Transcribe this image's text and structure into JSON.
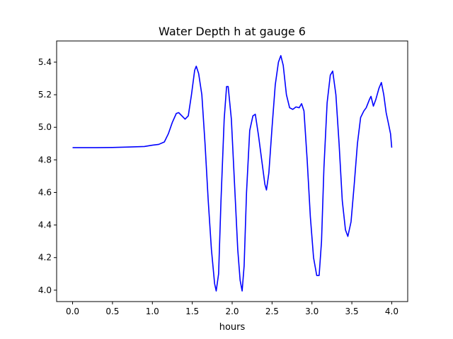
{
  "chart_data": {
    "type": "line",
    "title": "Water Depth h at gauge 6",
    "xlabel": "hours",
    "ylabel": "",
    "xlim": [
      -0.2,
      4.2
    ],
    "ylim": [
      3.93,
      5.53
    ],
    "xticks": [
      0.0,
      0.5,
      1.0,
      1.5,
      2.0,
      2.5,
      3.0,
      3.5,
      4.0
    ],
    "xtick_labels": [
      "0.0",
      "0.5",
      "1.0",
      "1.5",
      "2.0",
      "2.5",
      "3.0",
      "3.5",
      "4.0"
    ],
    "yticks": [
      4.0,
      4.2,
      4.4,
      4.6,
      4.8,
      5.0,
      5.2,
      5.4
    ],
    "ytick_labels": [
      "4.0",
      "4.2",
      "4.4",
      "4.6",
      "4.8",
      "5.0",
      "5.2",
      "5.4"
    ],
    "grid": false,
    "series": [
      {
        "color": "#0000ff",
        "points": [
          [
            0.0,
            4.875
          ],
          [
            0.3,
            4.875
          ],
          [
            0.5,
            4.876
          ],
          [
            0.7,
            4.879
          ],
          [
            0.9,
            4.882
          ],
          [
            1.0,
            4.89
          ],
          [
            1.08,
            4.895
          ],
          [
            1.15,
            4.91
          ],
          [
            1.2,
            4.96
          ],
          [
            1.25,
            5.03
          ],
          [
            1.3,
            5.085
          ],
          [
            1.33,
            5.09
          ],
          [
            1.37,
            5.07
          ],
          [
            1.41,
            5.05
          ],
          [
            1.45,
            5.07
          ],
          [
            1.49,
            5.2
          ],
          [
            1.53,
            5.35
          ],
          [
            1.55,
            5.375
          ],
          [
            1.58,
            5.33
          ],
          [
            1.62,
            5.2
          ],
          [
            1.66,
            4.9
          ],
          [
            1.7,
            4.55
          ],
          [
            1.74,
            4.25
          ],
          [
            1.78,
            4.04
          ],
          [
            1.8,
            3.995
          ],
          [
            1.83,
            4.1
          ],
          [
            1.86,
            4.55
          ],
          [
            1.9,
            5.05
          ],
          [
            1.93,
            5.25
          ],
          [
            1.95,
            5.25
          ],
          [
            1.99,
            5.05
          ],
          [
            2.03,
            4.65
          ],
          [
            2.07,
            4.25
          ],
          [
            2.1,
            4.06
          ],
          [
            2.125,
            3.995
          ],
          [
            2.15,
            4.15
          ],
          [
            2.18,
            4.6
          ],
          [
            2.22,
            4.98
          ],
          [
            2.26,
            5.07
          ],
          [
            2.29,
            5.08
          ],
          [
            2.33,
            4.95
          ],
          [
            2.37,
            4.8
          ],
          [
            2.41,
            4.65
          ],
          [
            2.43,
            4.615
          ],
          [
            2.46,
            4.72
          ],
          [
            2.5,
            5.0
          ],
          [
            2.54,
            5.26
          ],
          [
            2.58,
            5.4
          ],
          [
            2.61,
            5.44
          ],
          [
            2.64,
            5.38
          ],
          [
            2.68,
            5.2
          ],
          [
            2.72,
            5.12
          ],
          [
            2.76,
            5.11
          ],
          [
            2.8,
            5.125
          ],
          [
            2.84,
            5.12
          ],
          [
            2.87,
            5.145
          ],
          [
            2.9,
            5.1
          ],
          [
            2.94,
            4.8
          ],
          [
            2.98,
            4.45
          ],
          [
            3.02,
            4.2
          ],
          [
            3.06,
            4.09
          ],
          [
            3.09,
            4.09
          ],
          [
            3.12,
            4.3
          ],
          [
            3.15,
            4.75
          ],
          [
            3.19,
            5.15
          ],
          [
            3.23,
            5.32
          ],
          [
            3.26,
            5.345
          ],
          [
            3.3,
            5.2
          ],
          [
            3.34,
            4.9
          ],
          [
            3.38,
            4.55
          ],
          [
            3.42,
            4.37
          ],
          [
            3.45,
            4.33
          ],
          [
            3.49,
            4.42
          ],
          [
            3.53,
            4.65
          ],
          [
            3.57,
            4.9
          ],
          [
            3.61,
            5.06
          ],
          [
            3.65,
            5.1
          ],
          [
            3.68,
            5.12
          ],
          [
            3.72,
            5.17
          ],
          [
            3.74,
            5.19
          ],
          [
            3.77,
            5.13
          ],
          [
            3.8,
            5.17
          ],
          [
            3.84,
            5.24
          ],
          [
            3.87,
            5.275
          ],
          [
            3.9,
            5.2
          ],
          [
            3.93,
            5.09
          ],
          [
            3.96,
            5.02
          ],
          [
            3.985,
            4.96
          ],
          [
            4.0,
            4.875
          ]
        ]
      }
    ]
  }
}
